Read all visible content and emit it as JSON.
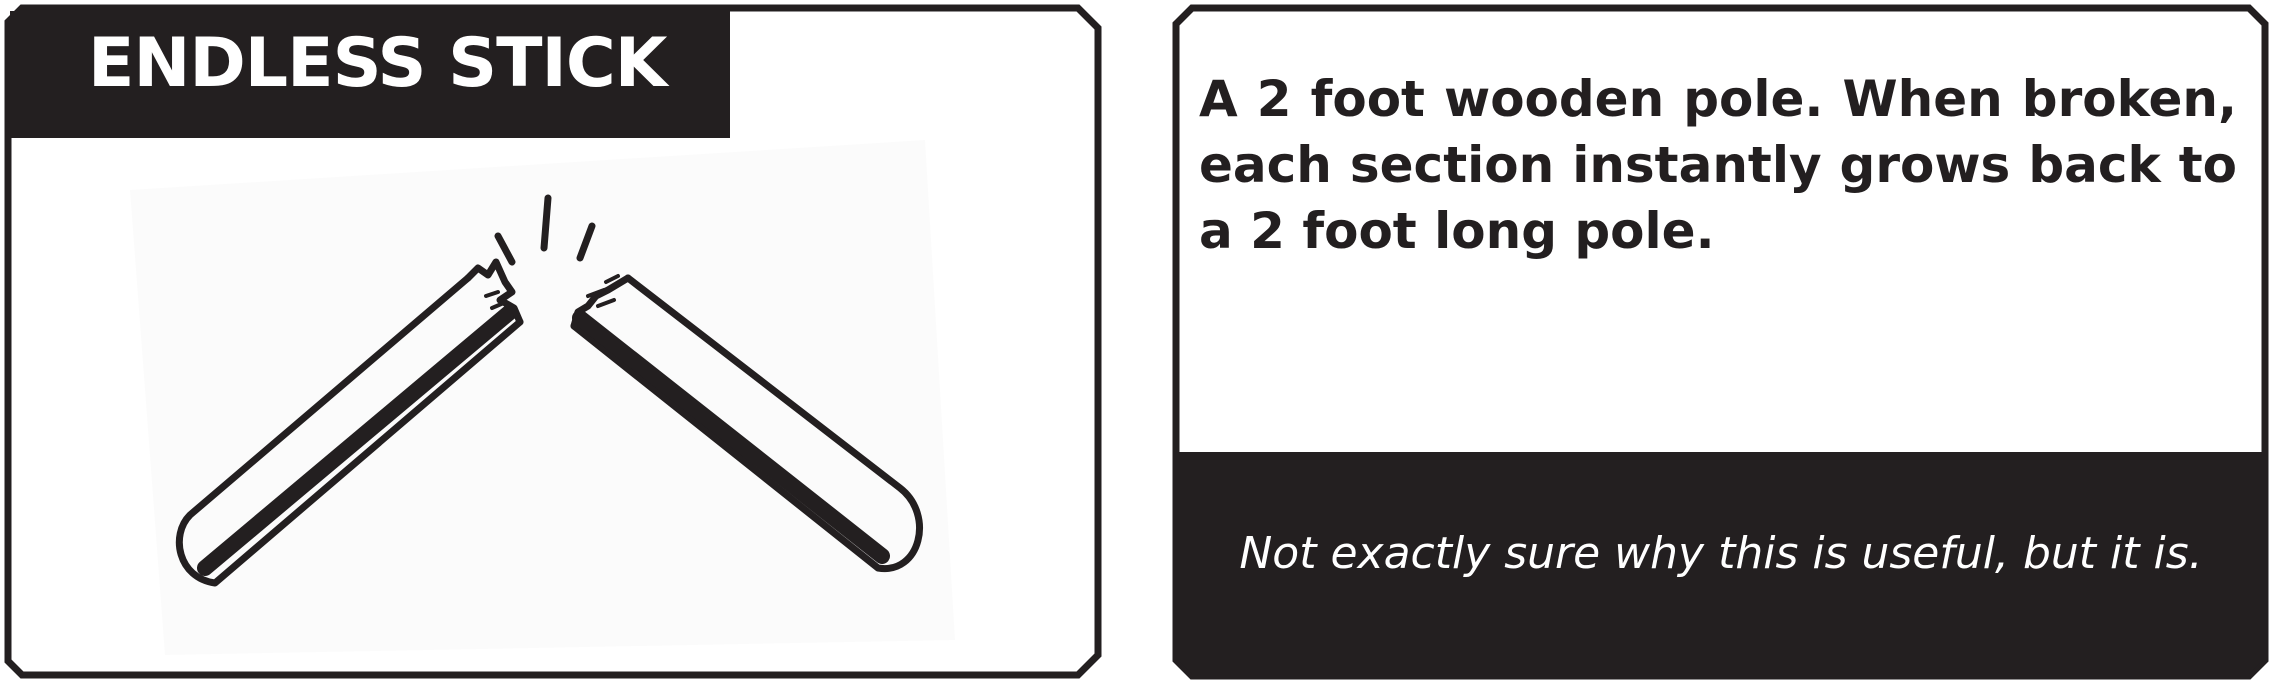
{
  "card": {
    "title": "ENDLESS STICK",
    "description": "A 2 foot wooden pole. When broken, each section instantly grows back to a 2 foot long pole.",
    "flavor_text": "Not exactly sure why this is useful, but it is.",
    "illustration": "broken-stick-drawing",
    "colors": {
      "banner": "#231f20",
      "text_light": "#ffffff",
      "text_dark": "#231f20",
      "border": "#231f20",
      "background": "#ffffff"
    }
  }
}
